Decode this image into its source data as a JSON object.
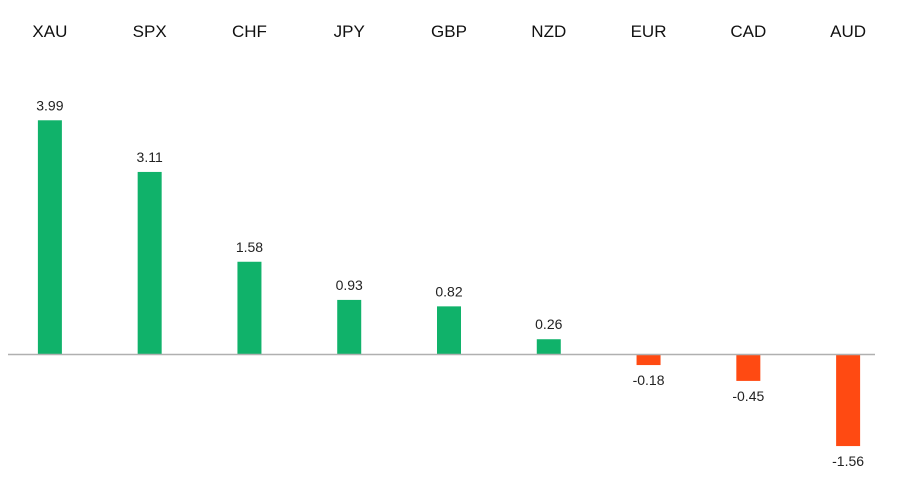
{
  "chart_data": {
    "type": "bar",
    "categories": [
      "XAU",
      "SPX",
      "CHF",
      "JPY",
      "GBP",
      "NZD",
      "EUR",
      "CAD",
      "AUD"
    ],
    "values": [
      3.99,
      3.11,
      1.58,
      0.93,
      0.82,
      0.26,
      -0.18,
      -0.45,
      -1.56
    ],
    "value_labels": [
      "3.99",
      "3.11",
      "1.58",
      "0.93",
      "0.82",
      "0.26",
      "-0.18",
      "-0.45",
      "-1.56"
    ],
    "title": "",
    "xlabel": "",
    "ylabel": "",
    "ylim": [
      -1.56,
      3.99
    ],
    "category_label_position": "top",
    "grid": false,
    "legend": "none",
    "colors": {
      "positive": "#10b26a",
      "negative": "#ff4a12",
      "baseline": "#b0b0b0"
    }
  }
}
